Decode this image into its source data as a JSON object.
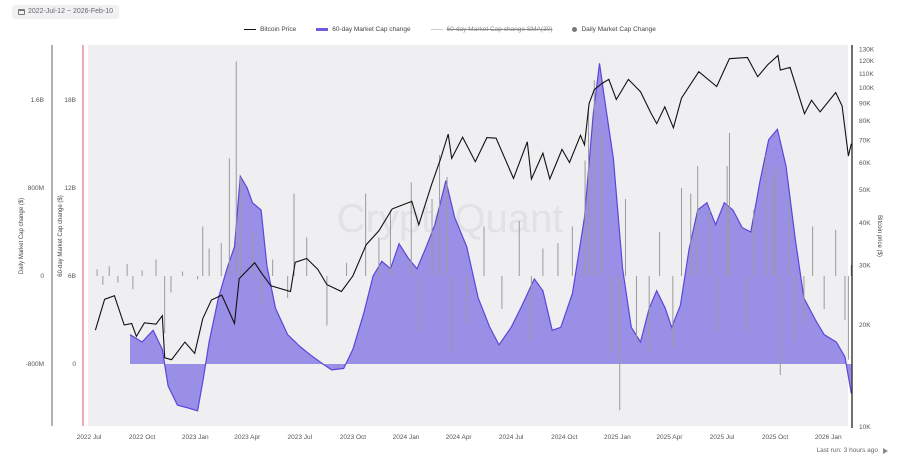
{
  "date_range": "2022-Jul-12 ~ 2026-Feb-10",
  "footer": {
    "last_run": "Last run: 3 hours ago"
  },
  "watermark": "CryptoQuant",
  "legend": [
    {
      "label": "Bitcoin Price",
      "style": "line",
      "color": "#111111"
    },
    {
      "label": "60-day Market Cap change",
      "style": "area",
      "color": "#5a46d9"
    },
    {
      "label": "60-day Market Cap change SMA(30)",
      "style": "line",
      "color": "#cccccc",
      "hidden": true
    },
    {
      "label": "Daily Market Cap Change",
      "style": "dot",
      "color": "#777777"
    }
  ],
  "chart_data": {
    "type": "line",
    "legend_position": "top",
    "grid": false,
    "x_range": [
      "2022-07-12",
      "2026-02-10"
    ],
    "x_ticks": [
      "2022 Jul",
      "2022 Oct",
      "2023 Jan",
      "2023 Apr",
      "2023 Jul",
      "2023 Oct",
      "2024 Jan",
      "2024 Apr",
      "2024 Jul",
      "2024 Oct",
      "2025 Jan",
      "2025 Apr",
      "2025 Jul",
      "2025 Oct",
      "2026 Jan"
    ],
    "axes": {
      "daily": {
        "label": "Daily Market Cap change ($)",
        "ticks": [
          "1.6B",
          "800M",
          "0",
          "-800M"
        ],
        "range_millions": [
          -1400,
          2050
        ]
      },
      "sixty_day": {
        "label": "60-day Market Cap change ($)",
        "ticks": [
          "18B",
          "12B",
          "6B",
          "0"
        ],
        "range_billions": [
          -6.5,
          25
        ]
      },
      "price": {
        "label": "Bitcoin price ($)",
        "scale": "log",
        "ticks": [
          "130K",
          "120K",
          "110K",
          "100K",
          "90K",
          "80K",
          "70K",
          "60K",
          "50K",
          "40K",
          "30K",
          "20K",
          "10K"
        ],
        "range_thousands": [
          10,
          135
        ]
      }
    },
    "colors": {
      "price": "#111111",
      "area_fill": "#9a8fe6",
      "area_stroke": "#5a46d9",
      "bars": "#9a9a9a",
      "plot_bg": "#efeff1",
      "left_axis_accent": "#d9536f"
    },
    "series": [
      {
        "name": "Bitcoin Price",
        "unit": "K USD",
        "points": [
          [
            "2022-07-12",
            19.3
          ],
          [
            "2022-07-28",
            23.8
          ],
          [
            "2022-08-14",
            24.4
          ],
          [
            "2022-08-31",
            20.0
          ],
          [
            "2022-09-13",
            20.2
          ],
          [
            "2022-09-21",
            18.5
          ],
          [
            "2022-10-05",
            20.3
          ],
          [
            "2022-10-25",
            20.1
          ],
          [
            "2022-11-05",
            21.3
          ],
          [
            "2022-11-09",
            16.0
          ],
          [
            "2022-11-21",
            15.8
          ],
          [
            "2022-12-14",
            17.8
          ],
          [
            "2022-12-31",
            16.5
          ],
          [
            "2023-01-14",
            20.9
          ],
          [
            "2023-01-29",
            23.7
          ],
          [
            "2023-02-16",
            24.5
          ],
          [
            "2023-03-10",
            20.2
          ],
          [
            "2023-03-18",
            27.4
          ],
          [
            "2023-04-14",
            30.5
          ],
          [
            "2023-04-26",
            28.4
          ],
          [
            "2023-05-12",
            26.1
          ],
          [
            "2023-06-15",
            25.1
          ],
          [
            "2023-06-23",
            30.6
          ],
          [
            "2023-07-13",
            31.4
          ],
          [
            "2023-08-01",
            29.2
          ],
          [
            "2023-08-17",
            26.3
          ],
          [
            "2023-09-11",
            25.1
          ],
          [
            "2023-10-01",
            27.9
          ],
          [
            "2023-10-24",
            34.5
          ],
          [
            "2023-11-15",
            37.9
          ],
          [
            "2023-12-08",
            44.0
          ],
          [
            "2024-01-11",
            46.3
          ],
          [
            "2024-01-23",
            39.5
          ],
          [
            "2024-02-14",
            51.8
          ],
          [
            "2024-02-29",
            61.2
          ],
          [
            "2024-03-14",
            73.1
          ],
          [
            "2024-03-20",
            62.0
          ],
          [
            "2024-04-08",
            71.6
          ],
          [
            "2024-04-30",
            60.6
          ],
          [
            "2024-05-20",
            71.4
          ],
          [
            "2024-06-05",
            71.1
          ],
          [
            "2024-07-05",
            54.1
          ],
          [
            "2024-07-29",
            69.4
          ],
          [
            "2024-08-05",
            53.9
          ],
          [
            "2024-08-25",
            64.2
          ],
          [
            "2024-09-06",
            53.9
          ],
          [
            "2024-09-27",
            65.9
          ],
          [
            "2024-10-10",
            60.3
          ],
          [
            "2024-10-29",
            72.5
          ],
          [
            "2024-11-05",
            68.0
          ],
          [
            "2024-11-13",
            90.0
          ],
          [
            "2024-11-22",
            98.9
          ],
          [
            "2024-12-05",
            103.0
          ],
          [
            "2024-12-17",
            106.1
          ],
          [
            "2024-12-30",
            92.5
          ],
          [
            "2025-01-20",
            106.0
          ],
          [
            "2025-02-10",
            97.5
          ],
          [
            "2025-02-28",
            84.4
          ],
          [
            "2025-03-10",
            78.5
          ],
          [
            "2025-03-24",
            88.0
          ],
          [
            "2025-04-08",
            76.3
          ],
          [
            "2025-04-22",
            93.4
          ],
          [
            "2025-05-22",
            111.7
          ],
          [
            "2025-06-22",
            101.0
          ],
          [
            "2025-07-14",
            122.0
          ],
          [
            "2025-08-14",
            123.0
          ],
          [
            "2025-09-01",
            108.0
          ],
          [
            "2025-09-18",
            117.0
          ],
          [
            "2025-10-06",
            124.7
          ],
          [
            "2025-10-10",
            113.0
          ],
          [
            "2025-10-27",
            115.0
          ],
          [
            "2025-11-21",
            84.0
          ],
          [
            "2025-12-03",
            92.0
          ],
          [
            "2025-12-18",
            85.0
          ],
          [
            "2026-01-14",
            97.0
          ],
          [
            "2026-01-25",
            88.5
          ],
          [
            "2026-02-05",
            63.0
          ],
          [
            "2026-02-10",
            68.5
          ]
        ]
      },
      {
        "name": "60-day Market Cap change",
        "unit": "B USD",
        "points": [
          [
            "2022-09-10",
            2.0
          ],
          [
            "2022-10-01",
            1.5
          ],
          [
            "2022-10-20",
            2.3
          ],
          [
            "2022-11-05",
            1.0
          ],
          [
            "2022-11-15",
            -1.5
          ],
          [
            "2022-12-01",
            -2.8
          ],
          [
            "2022-12-20",
            -3.0
          ],
          [
            "2023-01-05",
            -3.2
          ],
          [
            "2023-01-15",
            -1.0
          ],
          [
            "2023-01-25",
            1.5
          ],
          [
            "2023-02-10",
            4.5
          ],
          [
            "2023-02-25",
            6.5
          ],
          [
            "2023-03-10",
            8.0
          ],
          [
            "2023-03-20",
            12.8
          ],
          [
            "2023-04-01",
            12.0
          ],
          [
            "2023-04-10",
            11.0
          ],
          [
            "2023-04-25",
            10.5
          ],
          [
            "2023-05-05",
            6.7
          ],
          [
            "2023-05-20",
            3.8
          ],
          [
            "2023-06-10",
            2.0
          ],
          [
            "2023-07-01",
            1.2
          ],
          [
            "2023-07-20",
            0.6
          ],
          [
            "2023-08-10",
            0.0
          ],
          [
            "2023-08-25",
            -0.4
          ],
          [
            "2023-09-15",
            -0.3
          ],
          [
            "2023-10-01",
            1.0
          ],
          [
            "2023-10-20",
            3.5
          ],
          [
            "2023-11-05",
            6.0
          ],
          [
            "2023-11-20",
            7.0
          ],
          [
            "2023-12-05",
            6.5
          ],
          [
            "2023-12-20",
            8.2
          ],
          [
            "2024-01-05",
            7.2
          ],
          [
            "2024-01-20",
            6.5
          ],
          [
            "2024-02-05",
            8.0
          ],
          [
            "2024-02-20",
            9.5
          ],
          [
            "2024-03-10",
            12.5
          ],
          [
            "2024-03-25",
            10.0
          ],
          [
            "2024-04-15",
            8.0
          ],
          [
            "2024-05-05",
            4.5
          ],
          [
            "2024-05-25",
            2.5
          ],
          [
            "2024-06-10",
            1.3
          ],
          [
            "2024-07-01",
            2.5
          ],
          [
            "2024-07-20",
            4.0
          ],
          [
            "2024-08-10",
            5.8
          ],
          [
            "2024-08-25",
            5.0
          ],
          [
            "2024-09-10",
            2.3
          ],
          [
            "2024-09-25",
            2.5
          ],
          [
            "2024-10-15",
            4.8
          ],
          [
            "2024-11-05",
            10.0
          ],
          [
            "2024-11-20",
            17.0
          ],
          [
            "2024-12-01",
            20.5
          ],
          [
            "2024-12-10",
            18.0
          ],
          [
            "2024-12-25",
            14.0
          ],
          [
            "2025-01-10",
            6.5
          ],
          [
            "2025-01-25",
            2.5
          ],
          [
            "2025-02-10",
            1.5
          ],
          [
            "2025-02-25",
            3.8
          ],
          [
            "2025-03-10",
            5.0
          ],
          [
            "2025-03-25",
            3.8
          ],
          [
            "2025-04-05",
            2.5
          ],
          [
            "2025-04-20",
            4.0
          ],
          [
            "2025-05-05",
            7.8
          ],
          [
            "2025-05-20",
            10.5
          ],
          [
            "2025-06-05",
            11.0
          ],
          [
            "2025-06-20",
            9.5
          ],
          [
            "2025-07-05",
            11.0
          ],
          [
            "2025-07-20",
            10.5
          ],
          [
            "2025-08-05",
            9.3
          ],
          [
            "2025-08-20",
            9.0
          ],
          [
            "2025-09-05",
            12.5
          ],
          [
            "2025-09-20",
            15.3
          ],
          [
            "2025-10-05",
            16.0
          ],
          [
            "2025-10-20",
            13.5
          ],
          [
            "2025-11-05",
            8.5
          ],
          [
            "2025-11-20",
            4.5
          ],
          [
            "2025-12-10",
            3.0
          ],
          [
            "2025-12-25",
            2.0
          ],
          [
            "2026-01-15",
            1.5
          ],
          [
            "2026-01-30",
            0.5
          ],
          [
            "2026-02-10",
            -2.0
          ]
        ]
      },
      {
        "name": "Daily Market Cap Change",
        "unit": "M USD",
        "type": "bar",
        "points": [
          [
            "2022-07-15",
            60
          ],
          [
            "2022-07-25",
            -80
          ],
          [
            "2022-08-05",
            90
          ],
          [
            "2022-08-20",
            -60
          ],
          [
            "2022-09-05",
            110
          ],
          [
            "2022-09-15",
            -120
          ],
          [
            "2022-10-01",
            50
          ],
          [
            "2022-10-25",
            150
          ],
          [
            "2022-11-09",
            -520
          ],
          [
            "2022-11-20",
            -150
          ],
          [
            "2022-12-10",
            40
          ],
          [
            "2023-01-05",
            -30
          ],
          [
            "2023-01-14",
            450
          ],
          [
            "2023-01-25",
            250
          ],
          [
            "2023-02-15",
            300
          ],
          [
            "2023-03-01",
            1070
          ],
          [
            "2023-03-13",
            1950
          ],
          [
            "2023-03-20",
            900
          ],
          [
            "2023-04-10",
            400
          ],
          [
            "2023-04-25",
            -250
          ],
          [
            "2023-05-15",
            150
          ],
          [
            "2023-06-10",
            -200
          ],
          [
            "2023-06-21",
            750
          ],
          [
            "2023-07-13",
            350
          ],
          [
            "2023-08-17",
            -450
          ],
          [
            "2023-09-20",
            120
          ],
          [
            "2023-10-23",
            750
          ],
          [
            "2023-11-15",
            350
          ],
          [
            "2023-12-05",
            600
          ],
          [
            "2024-01-10",
            850
          ],
          [
            "2024-01-25",
            -500
          ],
          [
            "2024-02-15",
            700
          ],
          [
            "2024-02-28",
            1100
          ],
          [
            "2024-03-12",
            900
          ],
          [
            "2024-03-20",
            -700
          ],
          [
            "2024-04-15",
            -450
          ],
          [
            "2024-05-15",
            450
          ],
          [
            "2024-06-15",
            -300
          ],
          [
            "2024-07-15",
            500
          ],
          [
            "2024-08-05",
            -600
          ],
          [
            "2024-08-25",
            250
          ],
          [
            "2024-09-20",
            300
          ],
          [
            "2024-10-15",
            450
          ],
          [
            "2024-11-06",
            1050
          ],
          [
            "2024-11-12",
            1500
          ],
          [
            "2024-11-22",
            1780
          ],
          [
            "2024-12-05",
            1300
          ],
          [
            "2024-12-20",
            -700
          ],
          [
            "2025-01-05",
            -1220
          ],
          [
            "2025-01-15",
            700
          ],
          [
            "2025-02-03",
            -600
          ],
          [
            "2025-02-25",
            -700
          ],
          [
            "2025-03-15",
            400
          ],
          [
            "2025-04-07",
            -650
          ],
          [
            "2025-04-22",
            800
          ],
          [
            "2025-05-08",
            750
          ],
          [
            "2025-05-20",
            1000
          ],
          [
            "2025-06-10",
            600
          ],
          [
            "2025-06-22",
            -500
          ],
          [
            "2025-07-10",
            1000
          ],
          [
            "2025-07-14",
            1300
          ],
          [
            "2025-08-14",
            -500
          ],
          [
            "2025-08-25",
            600
          ],
          [
            "2025-09-15",
            1100
          ],
          [
            "2025-09-28",
            900
          ],
          [
            "2025-10-02",
            1000
          ],
          [
            "2025-10-10",
            -900
          ],
          [
            "2025-10-25",
            700
          ],
          [
            "2025-11-05",
            -600
          ],
          [
            "2025-11-20",
            -450
          ],
          [
            "2025-12-05",
            450
          ],
          [
            "2025-12-25",
            -300
          ],
          [
            "2026-01-14",
            420
          ],
          [
            "2026-01-30",
            -400
          ],
          [
            "2026-02-05",
            -760
          ],
          [
            "2026-02-10",
            100
          ]
        ]
      }
    ]
  }
}
